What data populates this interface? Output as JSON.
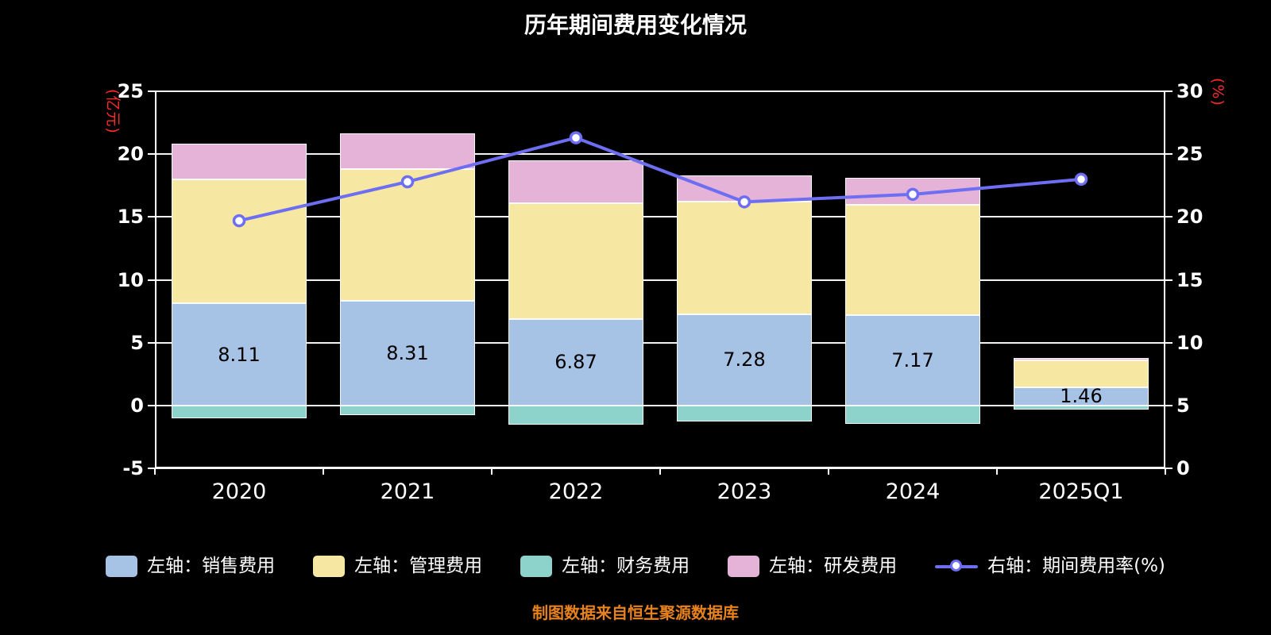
{
  "title": "历年期间费用变化情况",
  "source_note": "制图数据来自恒生聚源数据库",
  "colors": {
    "background": "#000000",
    "axis": "#FFFFFF",
    "grid": "#FFFFFF",
    "tick_label": "#FFFFFF",
    "axis_unit_label": "#FF2B2B",
    "bar_value_label": "#000000",
    "source_note": "#E8821E"
  },
  "chart_data": {
    "type": "bar",
    "subtype": "stacked-bars-with-line-overlay",
    "title": "历年期间费用变化情况",
    "categories": [
      "2020",
      "2021",
      "2022",
      "2023",
      "2024",
      "2025Q1"
    ],
    "left_axis": {
      "unit": "(亿元)",
      "min": -5,
      "max": 25,
      "ticks": [
        25,
        20,
        15,
        10,
        5,
        0,
        -5
      ]
    },
    "right_axis": {
      "unit": "(%)",
      "min": 0,
      "max": 30,
      "ticks": [
        30,
        25,
        20,
        15,
        10,
        5,
        0
      ]
    },
    "grid": "horizontal",
    "legend_position": "bottom",
    "series": [
      {
        "name": "左轴：销售费用",
        "kind": "bar",
        "color": "#A6C3E6",
        "values": [
          8.11,
          8.31,
          6.87,
          7.28,
          7.17,
          1.46
        ],
        "show_labels": true
      },
      {
        "name": "左轴：管理费用",
        "kind": "bar",
        "color": "#F6E8A3",
        "values": [
          9.85,
          10.5,
          9.25,
          8.95,
          8.8,
          2.1
        ]
      },
      {
        "name": "左轴：财务费用",
        "kind": "bar",
        "color": "#8DD3CB",
        "values": [
          -1.0,
          -0.75,
          -1.55,
          -1.3,
          -1.45,
          -0.35
        ]
      },
      {
        "name": "左轴：研发费用",
        "kind": "bar",
        "color": "#E5B3D8",
        "values": [
          2.85,
          2.85,
          3.4,
          2.1,
          2.15,
          0.2
        ]
      },
      {
        "name": "右轴：期间费用率(%)",
        "kind": "line",
        "color": "#6E6EF2",
        "values": [
          19.7,
          22.8,
          26.3,
          21.2,
          21.8,
          23.0
        ]
      }
    ]
  }
}
